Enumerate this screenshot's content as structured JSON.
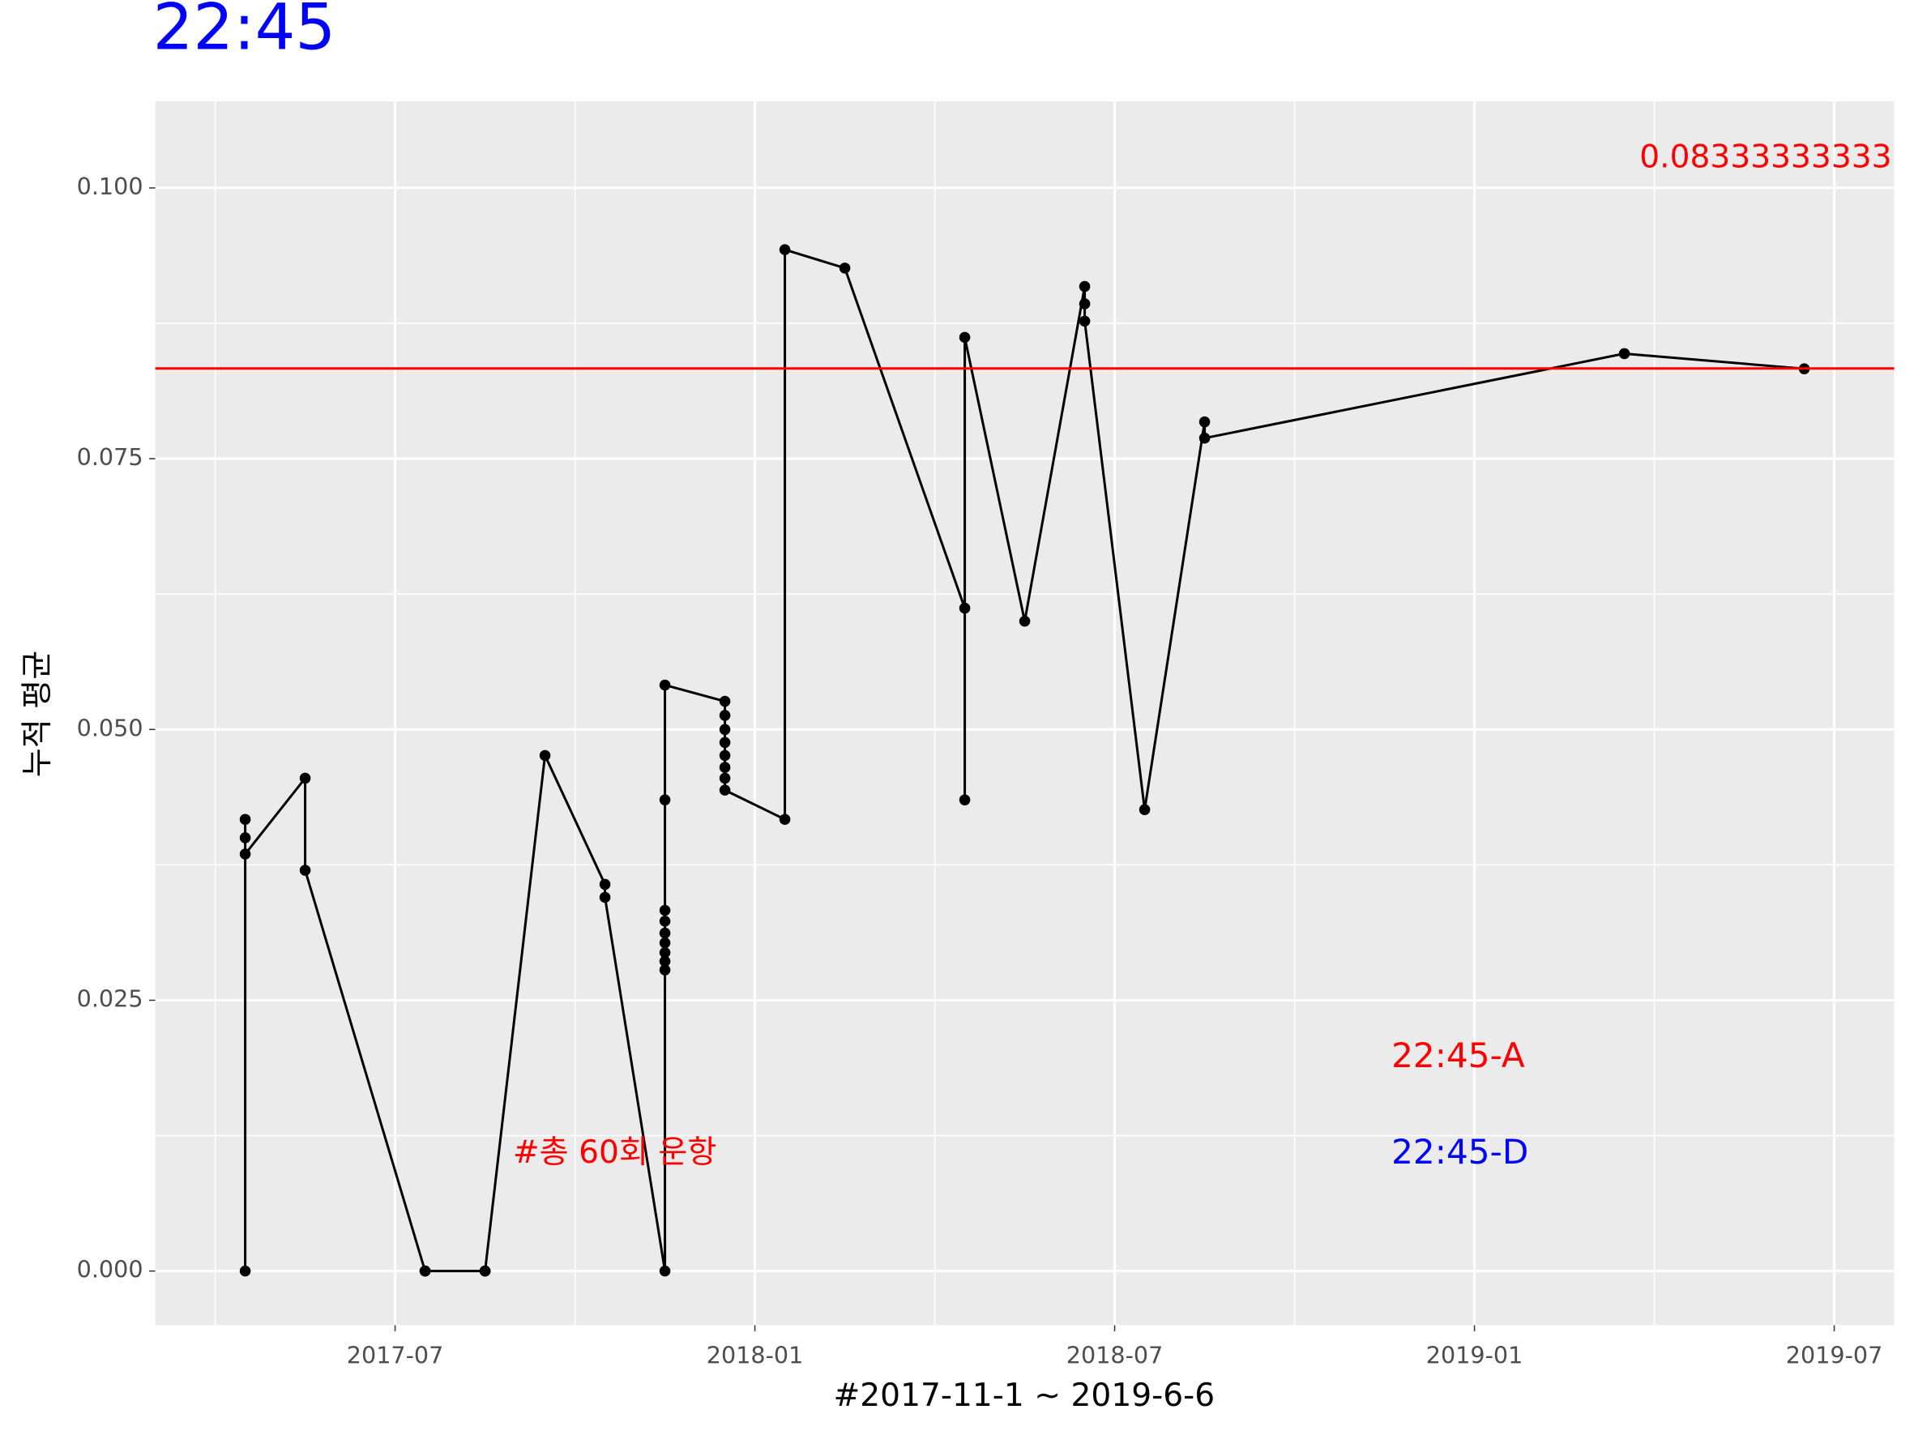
{
  "chart_data": {
    "type": "line",
    "title": "22:45",
    "x_label": "#2017-11-1 ~ 2019-6-6",
    "y_label": "누적 평균",
    "x": [
      "2017-04",
      "2017-04",
      "2017-04",
      "2017-04",
      "2017-05",
      "2017-05",
      "2017-07",
      "2017-07",
      "2017-07",
      "2017-07",
      "2017-07",
      "2017-08",
      "2017-08",
      "2017-08",
      "2017-08",
      "2017-09",
      "2017-10",
      "2017-10",
      "2017-11",
      "2017-11",
      "2017-11",
      "2017-11",
      "2017-11",
      "2017-11",
      "2017-11",
      "2017-11",
      "2017-11",
      "2017-11",
      "2017-12",
      "2017-12",
      "2017-12",
      "2017-12",
      "2017-12",
      "2017-12",
      "2017-12",
      "2017-12",
      "2018-01",
      "2018-01",
      "2018-02",
      "2018-04",
      "2018-04",
      "2018-04",
      "2018-05",
      "2018-06",
      "2018-06",
      "2018-06",
      "2018-07",
      "2018-08",
      "2018-08",
      "2019-03",
      "2019-06"
    ],
    "values": [
      0,
      0.0417,
      0.04,
      0.0385,
      0.0455,
      0.037,
      0,
      0,
      0,
      0,
      0,
      0,
      0,
      0,
      0,
      0.0476,
      0.0357,
      0.0345,
      0,
      0.0333,
      0.0323,
      0.0312,
      0.0303,
      0.0294,
      0.0286,
      0.0278,
      0.0435,
      0.0541,
      0.0526,
      0.0513,
      0.05,
      0.0488,
      0.0476,
      0.0465,
      0.0455,
      0.0444,
      0.0417,
      0.0943,
      0.0926,
      0.0612,
      0.0435,
      0.0862,
      0.06,
      0.0909,
      0.0893,
      0.0877,
      0.0426,
      0.0784,
      0.0769,
      0.0847,
      0.0833
    ],
    "color": "#000000",
    "xlim": [
      "2017-03",
      "2019-08"
    ],
    "xticks": [
      "2017-07",
      "2018-01",
      "2018-07",
      "2019-01",
      "2019-07"
    ],
    "ylim": [
      -0.005,
      0.108
    ],
    "yticks": [
      {
        "value": 0,
        "label": "0.000"
      },
      0.025,
      {
        "value": 0.05,
        "label": "0.050"
      },
      0.075,
      {
        "value": 0.1,
        "label": "0.100"
      }
    ],
    "grid": true,
    "hline": {
      "value": 0.08333333333,
      "color": "#ff0000"
    },
    "annotations": [
      {
        "text": "22:45-A",
        "color": "#ff0000"
      },
      {
        "text": "22:45-D",
        "color": "#0000ff"
      },
      {
        "text": "#총 60회 운항",
        "color": "#ff0000"
      }
    ],
    "title_color": "#0000ff"
  }
}
